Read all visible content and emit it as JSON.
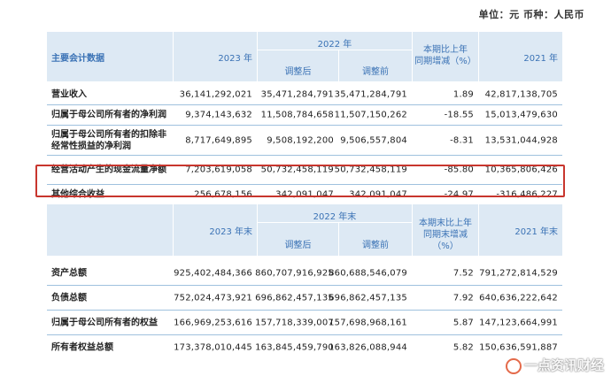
{
  "unit_line": "单位：元 币种：人民币",
  "header1": {
    "label": "主要会计数据",
    "y2023": "2023 年",
    "y2022": "2022 年",
    "adjusted": "调整后",
    "before": "调整前",
    "change_line1": "本期比上年",
    "change_line2": "同期增减（%）",
    "y2021": "2021 年"
  },
  "rows1": [
    {
      "label": "营业收入",
      "v2023": "36,141,292,021",
      "adj": "35,471,284,791",
      "before": "35,471,284,791",
      "pct": "1.89",
      "v2021": "42,817,138,705"
    },
    {
      "label": "归属于母公司所有者的净利润",
      "v2023": "9,374,143,632",
      "adj": "11,508,784,658",
      "before": "11,507,150,262",
      "pct": "-18.55",
      "v2021": "15,013,479,630"
    },
    {
      "label_line1": "归属于母公司所有者的扣除非",
      "label_line2": "经常性损益的净利润",
      "v2023": "8,717,649,895",
      "adj": "9,508,192,200",
      "before": "9,506,557,804",
      "pct": "-8.31",
      "v2021": "13,531,044,928"
    },
    {
      "label": "经营活动产生的现金流量净额",
      "v2023": "7,203,619,058",
      "adj": "50,732,458,119",
      "before": "50,732,458,119",
      "pct": "-85.80",
      "v2021": "10,365,806,426"
    },
    {
      "label": "其他综合收益",
      "v2023": "256,678,156",
      "adj": "342,091,047",
      "before": "342,091,047",
      "pct": "-24.97",
      "v2021": "-316,486,227"
    }
  ],
  "header2": {
    "y2023": "2023 年末",
    "y2022": "2022 年末",
    "adjusted": "调整后",
    "before": "调整前",
    "change_line1": "本期末比上年",
    "change_line2": "同期末增减（%）",
    "y2021": "2021 年末"
  },
  "rows2": [
    {
      "label": "资产总额",
      "v2023": "925,402,484,366",
      "adj": "860,707,916,925",
      "before": "860,688,546,079",
      "pct": "7.52",
      "v2021": "791,272,814,529"
    },
    {
      "label": "负债总额",
      "v2023": "752,024,473,921",
      "adj": "696,862,457,135",
      "before": "696,862,457,135",
      "pct": "7.92",
      "v2021": "640,636,222,642"
    },
    {
      "label": "归属于母公司所有者的权益",
      "v2023": "166,969,253,616",
      "adj": "157,718,339,007",
      "before": "157,698,968,161",
      "pct": "5.87",
      "v2021": "147,123,664,991"
    },
    {
      "label": "所有者权益总额",
      "v2023": "173,378,010,445",
      "adj": "163,845,459,790",
      "before": "163,826,088,944",
      "pct": "5.82",
      "v2021": "150,636,591,887"
    }
  ],
  "watermark": "一点资讯财经"
}
